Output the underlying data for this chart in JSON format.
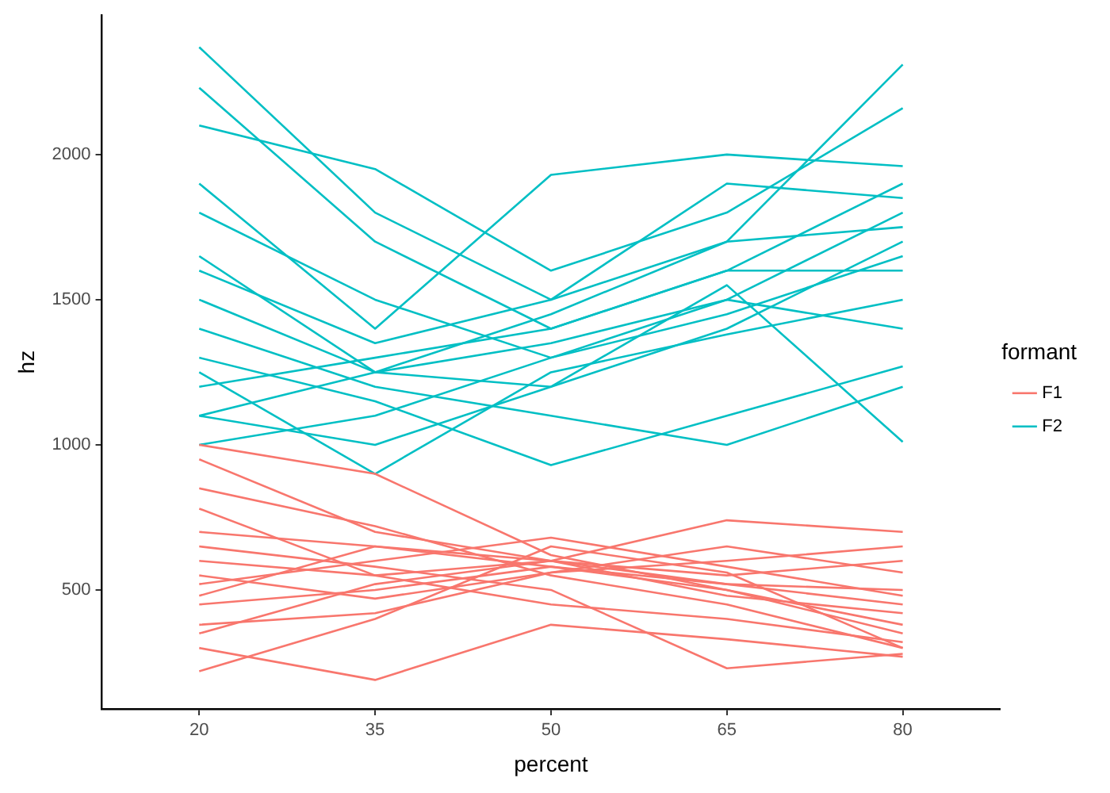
{
  "chart_data": {
    "type": "line",
    "xlabel": "percent",
    "ylabel": "hz",
    "legend_title": "formant",
    "legend": "right",
    "grid": false,
    "x": [
      20,
      35,
      50,
      65,
      80
    ],
    "xlim": [
      11.7,
      88.3
    ],
    "xticks": [
      20,
      35,
      50,
      65,
      80
    ],
    "ylim": [
      90,
      2480
    ],
    "yticks": [
      500,
      1000,
      1500,
      2000
    ],
    "series": [
      {
        "name": "F1",
        "color": "#f8766d",
        "values": [
          220,
          400,
          650,
          560,
          300
        ]
      },
      {
        "color": "#f8766d",
        "values": [
          300,
          190,
          380,
          330,
          270
        ]
      },
      {
        "color": "#f8766d",
        "values": [
          1000,
          900,
          620,
          500,
          350
        ]
      },
      {
        "color": "#f8766d",
        "values": [
          950,
          700,
          600,
          480,
          420
        ]
      },
      {
        "color": "#f8766d",
        "values": [
          600,
          550,
          600,
          740,
          700
        ]
      },
      {
        "color": "#f8766d",
        "values": [
          450,
          500,
          580,
          520,
          450
        ]
      },
      {
        "color": "#f8766d",
        "values": [
          380,
          420,
          560,
          600,
          650
        ]
      },
      {
        "color": "#f8766d",
        "values": [
          700,
          650,
          580,
          500,
          380
        ]
      },
      {
        "color": "#f8766d",
        "values": [
          520,
          600,
          680,
          580,
          480
        ]
      },
      {
        "color": "#f8766d",
        "values": [
          850,
          720,
          550,
          450,
          300
        ]
      },
      {
        "color": "#f8766d",
        "values": [
          350,
          520,
          600,
          550,
          600
        ]
      },
      {
        "color": "#f8766d",
        "values": [
          650,
          580,
          500,
          230,
          280
        ]
      },
      {
        "color": "#f8766d",
        "values": [
          550,
          470,
          560,
          650,
          560
        ]
      },
      {
        "color": "#f8766d",
        "values": [
          780,
          550,
          450,
          400,
          320
        ]
      },
      {
        "color": "#f8766d",
        "values": [
          480,
          650,
          600,
          520,
          500
        ]
      },
      {
        "name": "F2",
        "color": "#00bfc4",
        "values": [
          2370,
          1800,
          1500,
          1700,
          2310
        ]
      },
      {
        "color": "#00bfc4",
        "values": [
          2230,
          1700,
          1400,
          1600,
          1900
        ]
      },
      {
        "color": "#00bfc4",
        "values": [
          2100,
          1950,
          1600,
          1800,
          2160
        ]
      },
      {
        "color": "#00bfc4",
        "values": [
          1900,
          1400,
          1930,
          2000,
          1960
        ]
      },
      {
        "color": "#00bfc4",
        "values": [
          1650,
          1250,
          1200,
          1550,
          1010
        ]
      },
      {
        "color": "#00bfc4",
        "values": [
          1300,
          1150,
          930,
          1100,
          1270
        ]
      },
      {
        "color": "#00bfc4",
        "values": [
          1100,
          1000,
          1200,
          1400,
          1700
        ]
      },
      {
        "color": "#00bfc4",
        "values": [
          1000,
          1100,
          1300,
          1500,
          1800
        ]
      },
      {
        "color": "#00bfc4",
        "values": [
          1200,
          1300,
          1400,
          1600,
          1600
        ]
      },
      {
        "color": "#00bfc4",
        "values": [
          1500,
          1250,
          1350,
          1500,
          1400
        ]
      },
      {
        "color": "#00bfc4",
        "values": [
          1400,
          1200,
          1100,
          1000,
          1200
        ]
      },
      {
        "color": "#00bfc4",
        "values": [
          1800,
          1500,
          1300,
          1450,
          1650
        ]
      },
      {
        "color": "#00bfc4",
        "values": [
          1100,
          1250,
          1450,
          1700,
          1750
        ]
      },
      {
        "color": "#00bfc4",
        "values": [
          1250,
          900,
          1250,
          1380,
          1500
        ]
      },
      {
        "color": "#00bfc4",
        "values": [
          1600,
          1350,
          1500,
          1900,
          1850
        ]
      }
    ]
  }
}
